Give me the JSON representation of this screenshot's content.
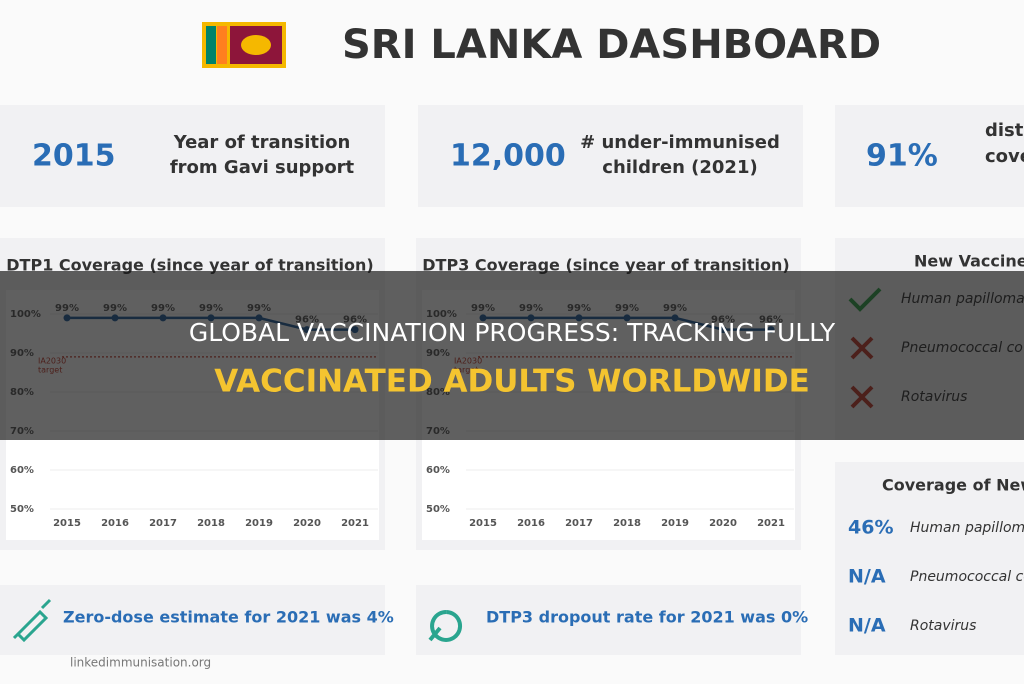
{
  "header": {
    "title": "SRI LANKA DASHBOARD"
  },
  "stats": [
    {
      "value": "2015",
      "label_lines": [
        "Year of transition",
        "from Gavi support"
      ]
    },
    {
      "value": "12,000",
      "label_lines": [
        "# under-immunised",
        "children (2021)"
      ]
    },
    {
      "value": "91%",
      "label_lines": [
        "dist",
        "cove"
      ]
    }
  ],
  "charts": [
    {
      "type": "line",
      "title": "DTP1 Coverage (since year of transition)",
      "categories": [
        "2015",
        "2016",
        "2017",
        "2018",
        "2019",
        "2020",
        "2021"
      ],
      "values": [
        99,
        99,
        99,
        99,
        99,
        96,
        96
      ],
      "value_labels": [
        "99%",
        "99%",
        "99%",
        "99%",
        "99%",
        "96%",
        "96%"
      ],
      "ylim": [
        50,
        100
      ],
      "yticks": [
        {
          "value": 50,
          "label": "50%"
        },
        {
          "value": 60,
          "label": "60%"
        },
        {
          "value": 70,
          "label": "70%"
        },
        {
          "value": 80,
          "label": "80%"
        },
        {
          "value": 90,
          "label": "90%"
        },
        {
          "value": 100,
          "label": "100%"
        }
      ],
      "target": {
        "value": 89,
        "label_lines": [
          "IA2030",
          "target"
        ]
      },
      "color": "#1f5c99"
    },
    {
      "type": "line",
      "title": "DTP3 Coverage (since year of transition)",
      "categories": [
        "2015",
        "2016",
        "2017",
        "2018",
        "2019",
        "2020",
        "2021"
      ],
      "values": [
        99,
        99,
        99,
        99,
        99,
        96,
        96
      ],
      "value_labels": [
        "99%",
        "99%",
        "99%",
        "99%",
        "99%",
        "96%",
        "96%"
      ],
      "ylim": [
        50,
        100
      ],
      "yticks": [
        {
          "value": 50,
          "label": "50%"
        },
        {
          "value": 60,
          "label": "60%"
        },
        {
          "value": 70,
          "label": "70%"
        },
        {
          "value": 80,
          "label": "80%"
        },
        {
          "value": 90,
          "label": "90%"
        },
        {
          "value": 100,
          "label": "100%"
        }
      ],
      "target": {
        "value": 89,
        "label_lines": [
          "IA2030",
          "target"
        ]
      },
      "color": "#1f5c99"
    }
  ],
  "new_vaccines": {
    "title": "New Vaccine",
    "items": [
      {
        "introduced": true,
        "name": "Human papilloma"
      },
      {
        "introduced": false,
        "name": "Pneumococcal co"
      },
      {
        "introduced": false,
        "name": "Rotavirus"
      }
    ]
  },
  "coverage_new": {
    "title": "Coverage of New",
    "rows": [
      {
        "value": "46%",
        "name": "Human papillom"
      },
      {
        "value": "N/A",
        "name": "Pneumococcal co"
      },
      {
        "value": "N/A",
        "name": "Rotavirus"
      }
    ]
  },
  "callouts": [
    "Zero-dose estimate for 2021 was 4%",
    "DTP3 dropout rate for 2021 was 0%"
  ],
  "source": "linkedimmunisation.org",
  "overlay": {
    "lines": [
      "GLOBAL VACCINATION PROGRESS: TRACKING FULLY",
      "VACCINATED ADULTS WORLDWIDE"
    ]
  }
}
